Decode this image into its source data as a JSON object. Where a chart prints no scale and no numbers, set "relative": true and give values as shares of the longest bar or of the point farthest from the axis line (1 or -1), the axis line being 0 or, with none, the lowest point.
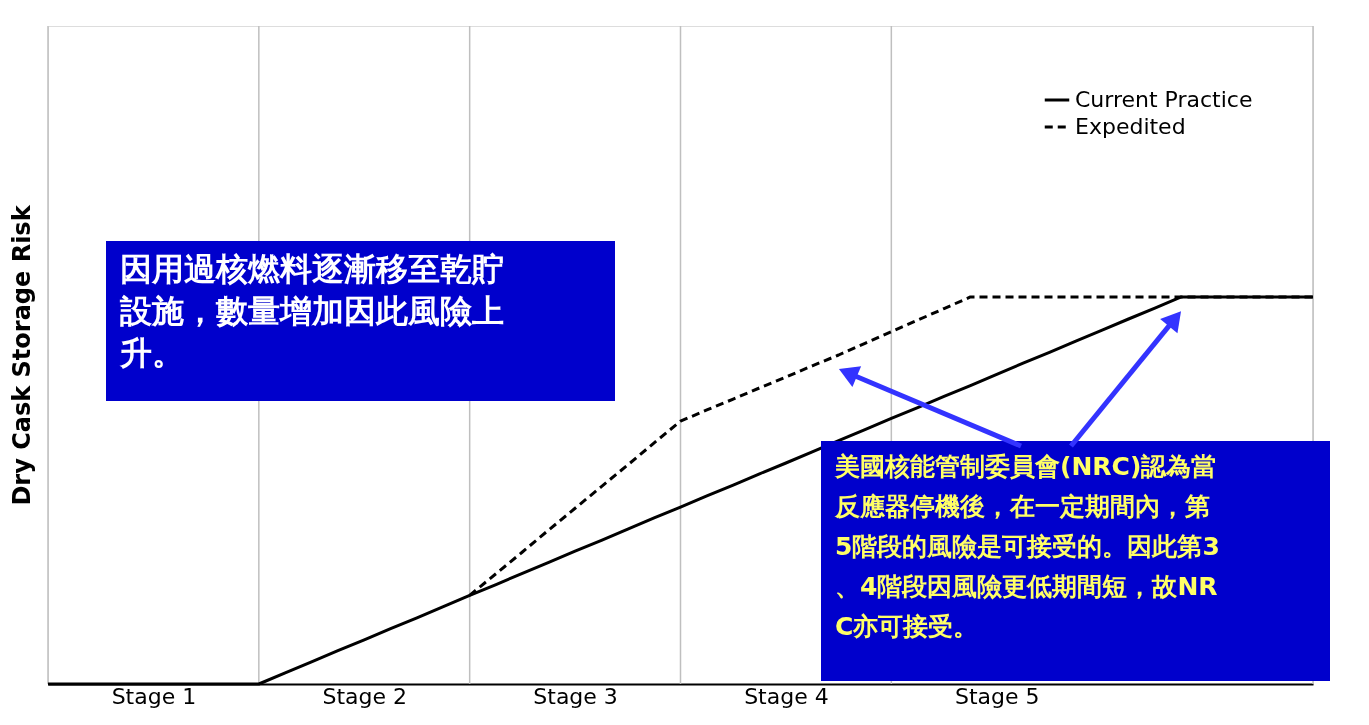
{
  "chart_data": {
    "type": "line",
    "ylabel": "Dry Cask Storage Risk",
    "relative": true,
    "categories": [
      null,
      null,
      null,
      null,
      "Stage 1",
      null,
      null,
      null,
      null,
      null,
      null,
      null,
      "Stage 2",
      null,
      null,
      null,
      null,
      null,
      null,
      null,
      "Stage 3",
      null,
      null,
      null,
      null,
      null,
      null,
      null,
      "Stage 4",
      null,
      null,
      null,
      null,
      null,
      null,
      null,
      "Stage 5",
      null,
      null,
      null,
      null,
      null,
      null,
      null,
      null,
      null,
      null,
      null,
      null
    ],
    "series": [
      {
        "name": "Current Practice",
        "color": "#000000",
        "line_style": "solid",
        "values": [
          0,
          0,
          0,
          0,
          0,
          0,
          0,
          0,
          0,
          0.029,
          0.057,
          0.086,
          0.114,
          0.143,
          0.171,
          0.2,
          0.229,
          0.257,
          0.286,
          0.314,
          0.343,
          0.371,
          0.4,
          0.429,
          0.457,
          0.486,
          0.514,
          0.543,
          0.571,
          0.6,
          0.629,
          0.657,
          0.686,
          0.714,
          0.743,
          0.771,
          0.8,
          0.829,
          0.857,
          0.886,
          0.914,
          0.943,
          0.971,
          1,
          1,
          1,
          1,
          1,
          1
        ]
      },
      {
        "name": "Expedited",
        "color": "#000000",
        "line_style": "dashed",
        "values": [
          null,
          null,
          null,
          null,
          null,
          null,
          null,
          null,
          null,
          null,
          null,
          null,
          null,
          null,
          null,
          null,
          0.229,
          0.285,
          0.341,
          0.398,
          0.454,
          0.51,
          0.566,
          0.623,
          0.679,
          0.708,
          0.736,
          0.765,
          0.793,
          0.822,
          0.85,
          0.88,
          0.91,
          0.94,
          0.97,
          1,
          1,
          1,
          1,
          1,
          1,
          1,
          1,
          1,
          1,
          1,
          1,
          1,
          1
        ]
      }
    ],
    "annotations": [
      "因用過核燃料逐漸移至乾貯設施，數量增加因此風險上升。",
      "美國核能管制委員會(NRC)認為當反應器停機後，在一定期間內，第5階段的風險是可接受的。因此第3、4階段因風險更低期間短，故NRC亦可接受。"
    ],
    "legend": "top right",
    "grid": "x"
  }
}
